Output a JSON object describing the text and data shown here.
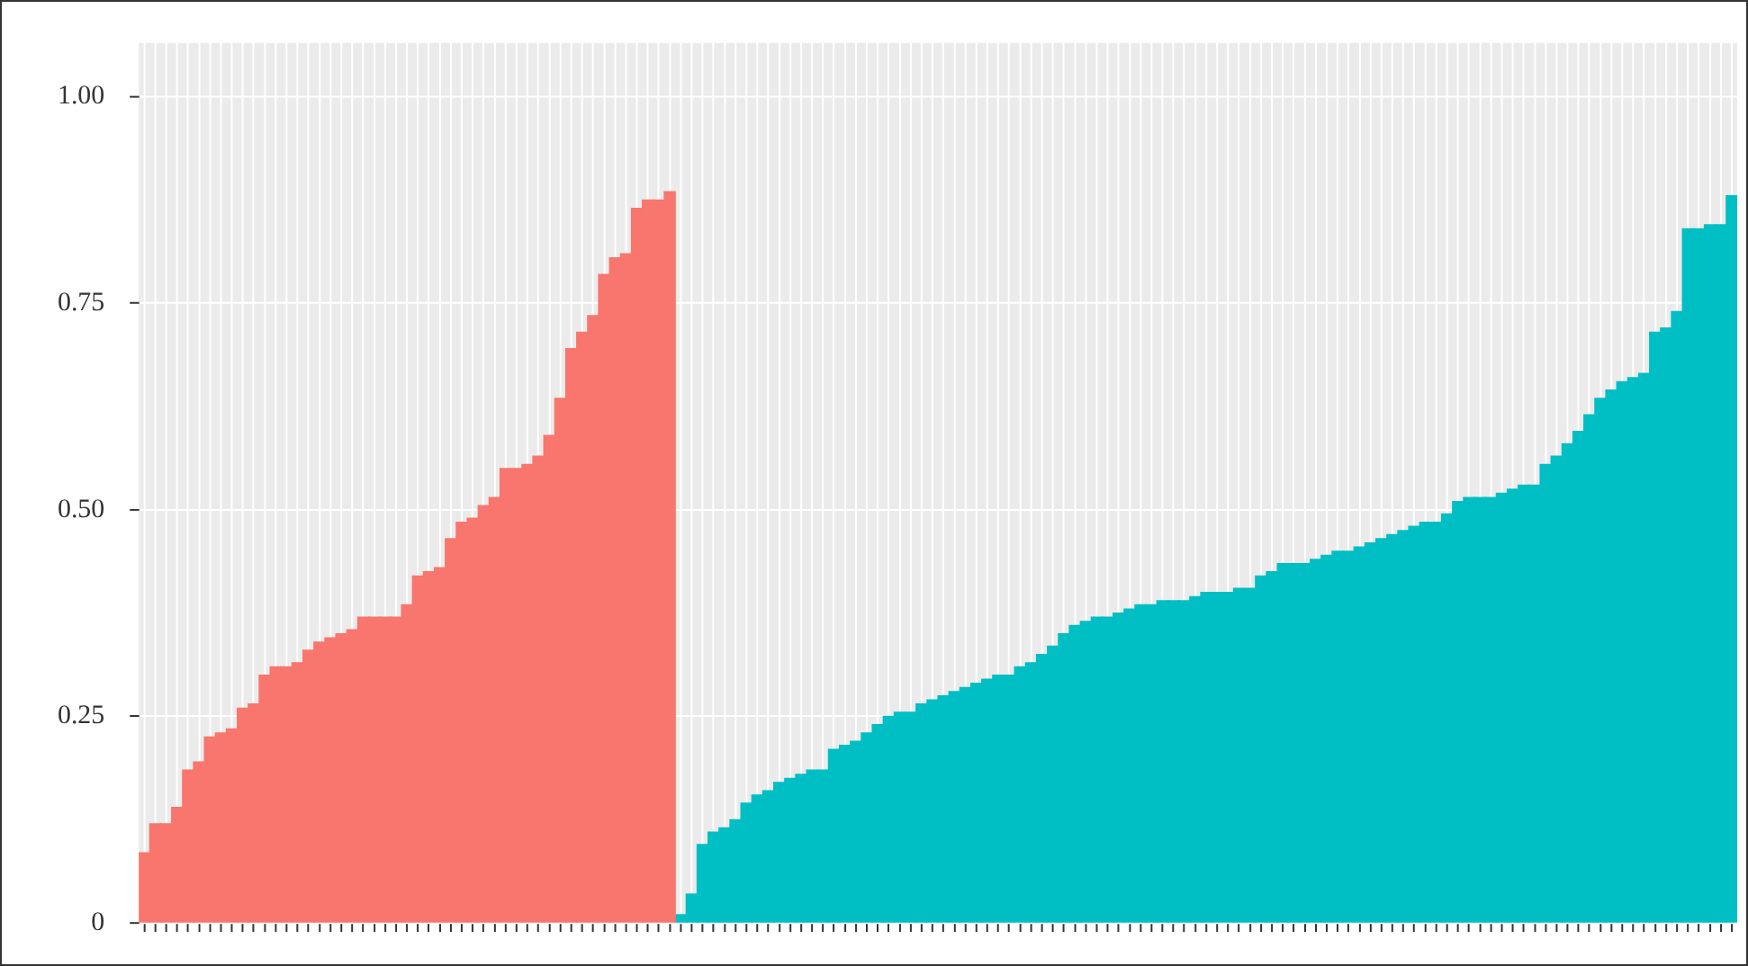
{
  "chart_data": {
    "type": "bar",
    "categories": [
      null,
      null,
      null,
      null,
      null,
      null,
      null,
      null,
      null,
      null,
      null,
      null,
      null,
      null,
      null,
      null,
      null,
      null,
      null,
      null,
      null,
      null,
      null,
      null,
      null,
      null,
      null,
      null,
      null,
      null,
      null,
      null,
      null,
      null,
      null,
      null,
      null,
      null,
      null,
      null,
      null,
      null,
      null,
      null,
      null,
      null,
      null,
      null,
      null,
      null,
      null,
      null,
      null,
      null,
      null,
      null,
      null,
      null,
      null,
      null,
      null,
      null,
      null,
      null,
      null,
      null,
      null,
      null,
      null,
      null,
      null,
      null,
      null,
      null,
      null,
      null,
      null,
      null,
      null,
      null,
      null,
      null,
      null,
      null,
      null,
      null,
      null,
      null,
      null,
      null,
      null,
      null,
      null,
      null,
      null,
      null,
      null,
      null,
      null,
      null,
      null,
      null,
      null,
      null,
      null,
      null,
      null,
      null,
      null,
      null,
      null,
      null,
      null,
      null,
      null,
      null,
      null,
      null,
      null,
      null,
      null,
      null,
      null,
      null,
      null,
      null,
      null,
      null,
      null,
      null,
      null,
      null,
      null,
      null,
      null,
      null,
      null,
      null,
      null,
      null,
      null,
      null,
      null,
      null,
      null,
      null
    ],
    "series": [
      {
        "color": "#f8766d",
        "values": [
          0.085,
          0.12,
          0.12,
          0.14,
          0.185,
          0.195,
          0.225,
          0.23,
          0.235,
          0.26,
          0.265,
          0.3,
          0.31,
          0.31,
          0.315,
          0.33,
          0.34,
          0.345,
          0.35,
          0.355,
          0.37,
          0.37,
          0.37,
          0.37,
          0.385,
          0.42,
          0.425,
          0.43,
          0.465,
          0.485,
          0.49,
          0.505,
          0.515,
          0.55,
          0.55,
          0.555,
          0.565,
          0.59,
          0.635,
          0.695,
          0.715,
          0.735,
          0.785,
          0.805,
          0.81,
          0.865,
          0.875,
          0.875,
          0.885,
          null,
          null,
          null,
          null,
          null,
          null,
          null,
          null,
          null,
          null,
          null,
          null,
          null,
          null,
          null,
          null,
          null,
          null,
          null,
          null,
          null,
          null,
          null,
          null,
          null,
          null,
          null,
          null,
          null,
          null,
          null,
          null,
          null,
          null,
          null,
          null,
          null,
          null,
          null,
          null,
          null,
          null,
          null,
          null,
          null,
          null,
          null,
          null,
          null,
          null,
          null,
          null,
          null,
          null,
          null,
          null,
          null,
          null,
          null,
          null,
          null,
          null,
          null,
          null,
          null,
          null,
          null,
          null,
          null,
          null,
          null,
          null,
          null,
          null,
          null,
          null,
          null,
          null,
          null,
          null,
          null,
          null,
          null,
          null,
          null,
          null,
          null,
          null,
          null,
          null,
          null,
          null,
          null,
          null,
          null,
          null,
          null
        ]
      },
      {
        "color": "#00bfc4",
        "values": [
          null,
          null,
          null,
          null,
          null,
          null,
          null,
          null,
          null,
          null,
          null,
          null,
          null,
          null,
          null,
          null,
          null,
          null,
          null,
          null,
          null,
          null,
          null,
          null,
          null,
          null,
          null,
          null,
          null,
          null,
          null,
          null,
          null,
          null,
          null,
          null,
          null,
          null,
          null,
          null,
          null,
          null,
          null,
          null,
          null,
          null,
          null,
          null,
          null,
          0.01,
          0.035,
          0.095,
          0.11,
          0.115,
          0.125,
          0.145,
          0.155,
          0.16,
          0.17,
          0.175,
          0.18,
          0.185,
          0.185,
          0.21,
          0.215,
          0.22,
          0.23,
          0.24,
          0.25,
          0.255,
          0.255,
          0.265,
          0.27,
          0.275,
          0.28,
          0.285,
          0.29,
          0.295,
          0.3,
          0.3,
          0.31,
          0.315,
          0.325,
          0.335,
          0.35,
          0.36,
          0.365,
          0.37,
          0.37,
          0.375,
          0.38,
          0.385,
          0.385,
          0.39,
          0.39,
          0.39,
          0.395,
          0.4,
          0.4,
          0.4,
          0.405,
          0.405,
          0.42,
          0.425,
          0.435,
          0.435,
          0.435,
          0.44,
          0.445,
          0.45,
          0.45,
          0.455,
          0.46,
          0.465,
          0.47,
          0.475,
          0.48,
          0.485,
          0.485,
          0.495,
          0.51,
          0.515,
          0.515,
          0.515,
          0.52,
          0.525,
          0.53,
          0.53,
          0.555,
          0.565,
          0.58,
          0.595,
          0.615,
          0.635,
          0.645,
          0.655,
          0.66,
          0.665,
          0.715,
          0.72,
          0.74,
          0.84,
          0.84,
          0.845,
          0.845,
          0.88
        ]
      }
    ],
    "ylim": [
      0,
      1.065
    ],
    "yticks": [
      0,
      {
        "value": 0.25,
        "label": "0.25"
      },
      {
        "value": 0.5,
        "label": "0.50"
      },
      {
        "value": 0.75,
        "label": "0.75"
      },
      {
        "value": 1,
        "label": "1.00"
      }
    ],
    "grid": true,
    "tick_labels": "y"
  }
}
